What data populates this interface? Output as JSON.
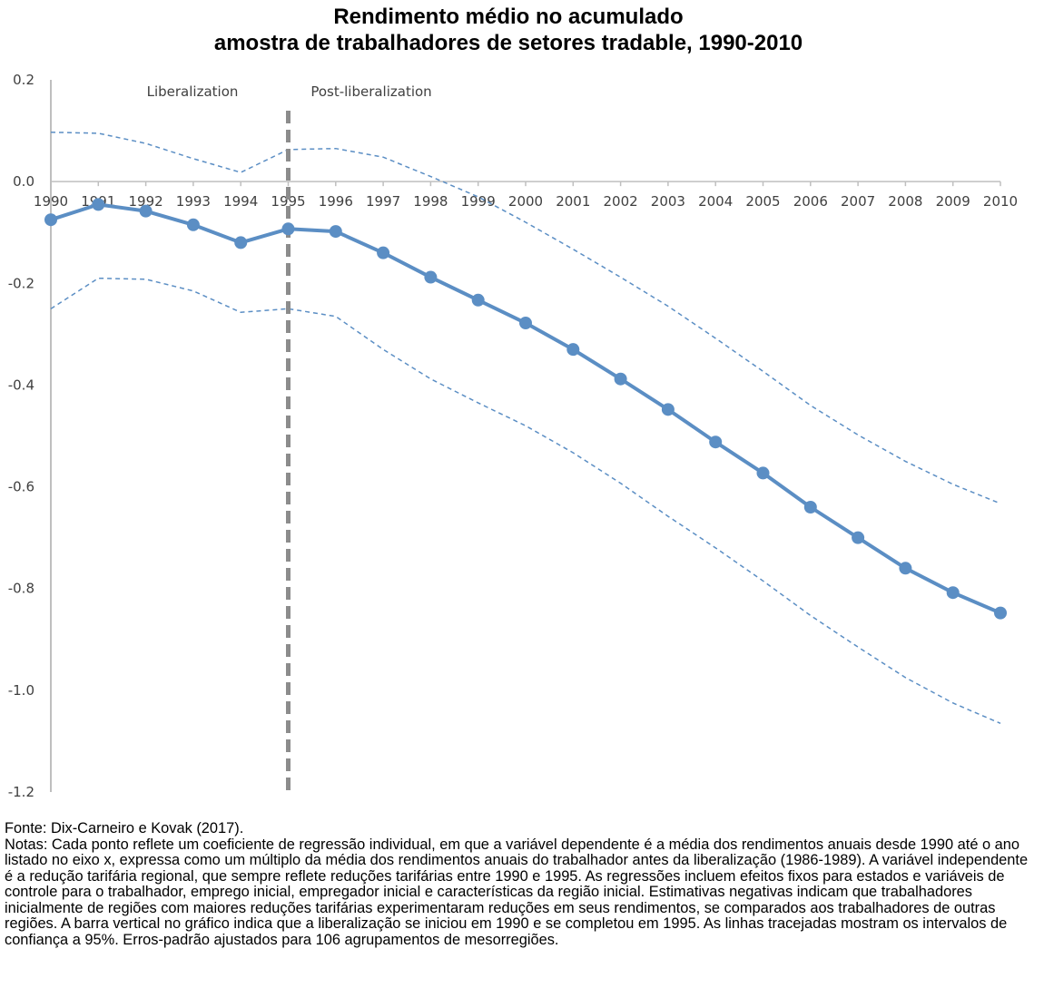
{
  "title_line1": "Rendimento médio no acumulado",
  "title_line2": "amostra de trabalhadores de setores tradable, 1990-2010",
  "annotations": {
    "liberalization": "Liberalization",
    "post_liberalization": "Post-liberalization"
  },
  "source": "Fonte: Dix-Carneiro e Kovak (2017).",
  "notes": "Notas: Cada ponto reflete um coeficiente de regressão individual, em que a variável dependente é a média dos rendimentos anuais desde 1990 até o ano listado no eixo x, expressa como um múltiplo da média dos rendimentos anuais do trabalhador antes da liberalização (1986-1989). A variável independente é a redução tarifária regional, que sempre reflete reduções tarifárias entre 1990 e 1995. As regressões incluem efeitos fixos para estados e variáveis de controle para o trabalhador, emprego inicial, empregador inicial e características da região inicial. Estimativas negativas indicam que trabalhadores inicialmente de regiões com maiores reduções tarifárias experimentaram reduções em seus rendimentos, se comparados aos trabalhadores de outras regiões. A barra vertical no gráfico indica que a liberalização se iniciou em 1990 e se completou em 1995. As linhas tracejadas mostram os intervalos de confiança a 95%. Erros-padrão ajustados para 106 agrupamentos de mesorregiões.",
  "colors": {
    "series": "#5b8ec4",
    "ci": "#5b8ec4",
    "axis": "#bfbfbf",
    "vline": "#8c8c8c"
  },
  "chart_data": {
    "type": "line",
    "x": [
      1990,
      1991,
      1992,
      1993,
      1994,
      1995,
      1996,
      1997,
      1998,
      1999,
      2000,
      2001,
      2002,
      2003,
      2004,
      2005,
      2006,
      2007,
      2008,
      2009,
      2010
    ],
    "x_tick_labels": [
      "1990",
      "1991",
      "1992",
      "1993",
      "1994",
      "1995",
      "1996",
      "1997",
      "1998",
      "1999",
      "2000",
      "2001",
      "2002",
      "2003",
      "2004",
      "2005",
      "2006",
      "2007",
      "2008",
      "2009",
      "2010"
    ],
    "y_tick_labels": [
      "0.2",
      "0.0",
      "-0.2",
      "-0.4",
      "-0.6",
      "-0.8",
      "-1.0",
      "-1.2"
    ],
    "y_ticks": [
      0.2,
      0.0,
      -0.2,
      -0.4,
      -0.6,
      -0.8,
      -1.0,
      -1.2
    ],
    "ylim": [
      -1.2,
      0.2
    ],
    "series": [
      {
        "values": [
          -0.075,
          -0.045,
          -0.058,
          -0.085,
          -0.12,
          -0.093,
          -0.098,
          -0.14,
          -0.188,
          -0.233,
          -0.278,
          -0.33,
          -0.388,
          -0.448,
          -0.512,
          -0.573,
          -0.64,
          -0.7,
          -0.76,
          -0.808,
          -0.848
        ]
      }
    ],
    "ci_upper": [
      0.097,
      0.095,
      0.075,
      0.045,
      0.018,
      0.063,
      0.065,
      0.048,
      0.01,
      -0.03,
      -0.08,
      -0.133,
      -0.188,
      -0.245,
      -0.308,
      -0.373,
      -0.44,
      -0.498,
      -0.55,
      -0.595,
      -0.633
    ],
    "ci_lower": [
      -0.25,
      -0.19,
      -0.192,
      -0.215,
      -0.257,
      -0.25,
      -0.265,
      -0.33,
      -0.388,
      -0.435,
      -0.48,
      -0.533,
      -0.593,
      -0.658,
      -0.72,
      -0.785,
      -0.853,
      -0.915,
      -0.975,
      -1.025,
      -1.065
    ],
    "vertical_marker_x": 1995
  }
}
